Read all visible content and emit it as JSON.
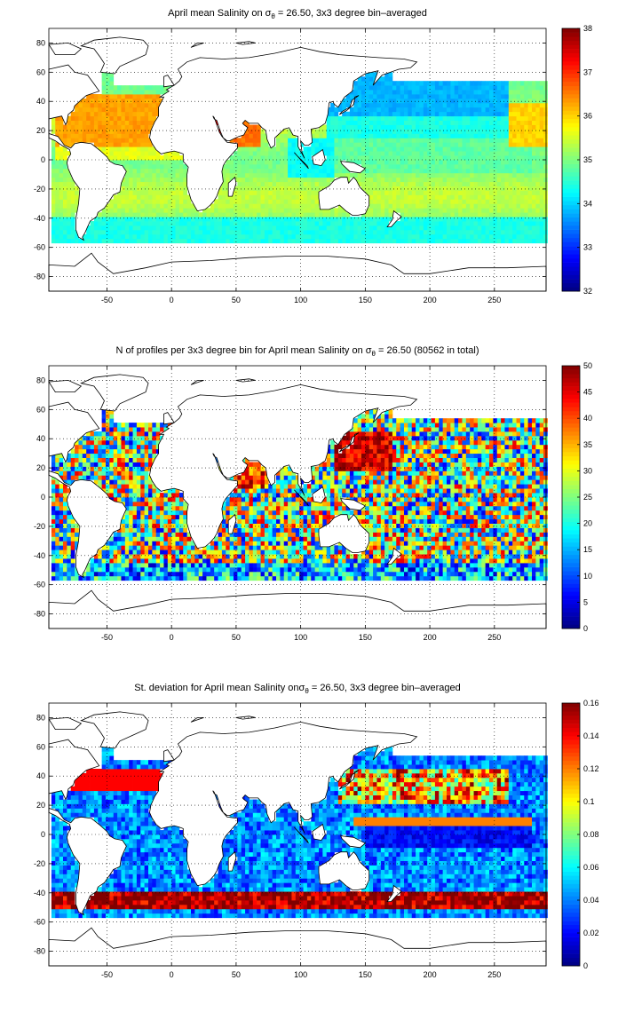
{
  "chart_data": [
    {
      "type": "heatmap",
      "title": "April mean Salinity on σθ = 26.50, 3x3 degree bin–averaged",
      "title_parts": {
        "prefix": "April mean Salinity on ",
        "sigma": "σ",
        "sub": "θ",
        "suffix": " = 26.50, 3x3 degree bin–averaged"
      },
      "xlim": [
        -95,
        290
      ],
      "ylim": [
        -90,
        90
      ],
      "x_ticks": [
        -50,
        0,
        50,
        100,
        150,
        200,
        250
      ],
      "y_ticks": [
        -80,
        -60,
        -40,
        -20,
        0,
        20,
        40,
        60,
        80
      ],
      "grid": true,
      "colorbar": {
        "min": 32,
        "max": 38,
        "ticks": [
          32,
          33,
          34,
          35,
          36,
          37,
          38
        ],
        "colormap": "jet"
      },
      "approx_values": [
        {
          "region": "North Atlantic subtropics",
          "value": 36.5
        },
        {
          "region": "Red Sea / Arabian Sea",
          "value": 36.8
        },
        {
          "region": "South Atlantic / Indian subtropics",
          "value": 35.3
        },
        {
          "region": "Equatorial Pacific",
          "value": 34.9
        },
        {
          "region": "North Pacific",
          "value": 34.0
        },
        {
          "region": "Southern Ocean edge",
          "value": 34.3
        }
      ]
    },
    {
      "type": "heatmap",
      "title": "N of profiles per 3x3 degree bin for April mean Salinity on σθ = 26.50 (80562 in total)",
      "title_parts": {
        "prefix": "N of profiles per 3x3 degree bin for April mean Salinity on ",
        "sigma": "σ",
        "sub": "θ",
        "suffix": " = 26.50 (80562 in total)"
      },
      "total_profiles": 80562,
      "xlim": [
        -95,
        290
      ],
      "ylim": [
        -90,
        90
      ],
      "x_ticks": [
        -50,
        0,
        50,
        100,
        150,
        200,
        250
      ],
      "y_ticks": [
        -80,
        -60,
        -40,
        -20,
        0,
        20,
        40,
        60,
        80
      ],
      "grid": true,
      "colorbar": {
        "min": 0,
        "max": 50,
        "ticks": [
          0,
          5,
          10,
          15,
          20,
          25,
          30,
          35,
          40,
          45,
          50
        ],
        "colormap": "jet"
      },
      "approx_values": [
        {
          "region": "Kuroshio / NW Pacific",
          "value": 50
        },
        {
          "region": "Arabian Sea",
          "value": 45
        },
        {
          "region": "Open ocean typical",
          "value": 25
        },
        {
          "region": "Southern Ocean edge",
          "value": 10
        }
      ]
    },
    {
      "type": "heatmap",
      "title": "St. deviation for April mean Salinity onσθ = 26.50, 3x3 degree bin–averaged",
      "title_parts": {
        "prefix": "St. deviation for April mean Salinity on",
        "sigma": "σ",
        "sub": "θ",
        "suffix": " = 26.50, 3x3 degree bin–averaged"
      },
      "xlim": [
        -95,
        290
      ],
      "ylim": [
        -90,
        90
      ],
      "x_ticks": [
        -50,
        0,
        50,
        100,
        150,
        200,
        250
      ],
      "y_ticks": [
        -80,
        -60,
        -40,
        -20,
        0,
        20,
        40,
        60,
        80
      ],
      "grid": true,
      "colorbar": {
        "min": 0,
        "max": 0.16,
        "ticks": [
          0,
          0.02,
          0.04,
          0.06,
          0.08,
          0.1,
          0.12,
          0.14,
          0.16
        ],
        "colormap": "jet"
      },
      "approx_values": [
        {
          "region": "Subantarctic front",
          "value": 0.16
        },
        {
          "region": "Gulf Stream",
          "value": 0.15
        },
        {
          "region": "North Pacific bands",
          "value": 0.12
        },
        {
          "region": "Equatorial Pacific",
          "value": 0.02
        },
        {
          "region": "Subtropical gyres",
          "value": 0.04
        }
      ]
    }
  ]
}
